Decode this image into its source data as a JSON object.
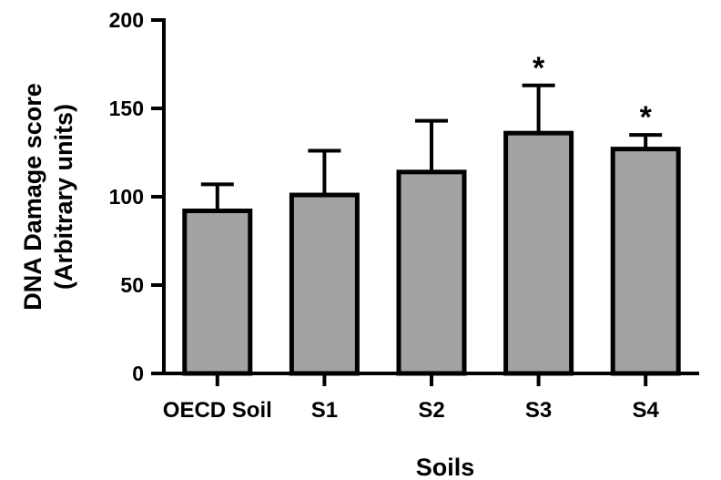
{
  "chart_data": {
    "type": "bar",
    "categories": [
      "OECD Soil",
      "S1",
      "S2",
      "S3",
      "S4"
    ],
    "values": [
      92,
      101,
      114,
      136,
      127
    ],
    "error_upper": [
      107,
      126,
      143,
      163,
      135
    ],
    "annotations": [
      "",
      "",
      "",
      "*",
      "*"
    ],
    "xlabel": "Soils",
    "ylabel": [
      "DNA Damage score",
      "(Arbitrary units)"
    ],
    "ylim": [
      0,
      200
    ],
    "yticks": [
      0,
      50,
      100,
      150,
      200
    ],
    "bar_color": "#a3a3a6",
    "edge_color": "#000000",
    "grid": false
  }
}
